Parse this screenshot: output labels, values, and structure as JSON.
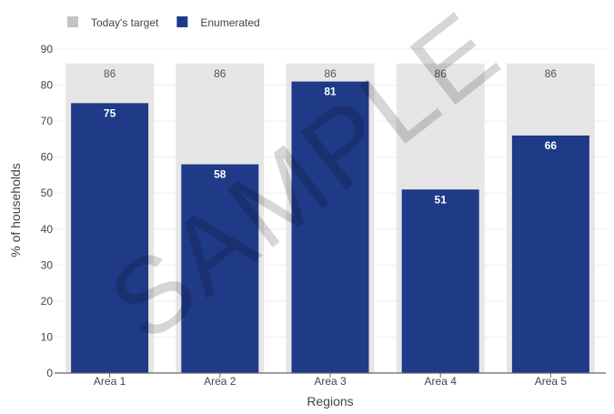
{
  "chart_data": {
    "type": "bar",
    "title": "",
    "xlabel": "Regions",
    "ylabel": "% of households",
    "categories": [
      "Area 1",
      "Area 2",
      "Area 3",
      "Area 4",
      "Area 5"
    ],
    "series": [
      {
        "name": "Today's target",
        "values": [
          86,
          86,
          86,
          86,
          86
        ],
        "color": "#e6e6e6",
        "legend_color": "#c4c4c4"
      },
      {
        "name": "Enumerated",
        "values": [
          75,
          58,
          81,
          51,
          66
        ],
        "color": "#1f3a87"
      }
    ],
    "ylim": [
      0,
      90
    ],
    "yticks": [
      0,
      10,
      20,
      30,
      40,
      50,
      60,
      70,
      80,
      90
    ],
    "grid": true,
    "legend_position": "top-left",
    "watermark": "SAMPLE"
  }
}
